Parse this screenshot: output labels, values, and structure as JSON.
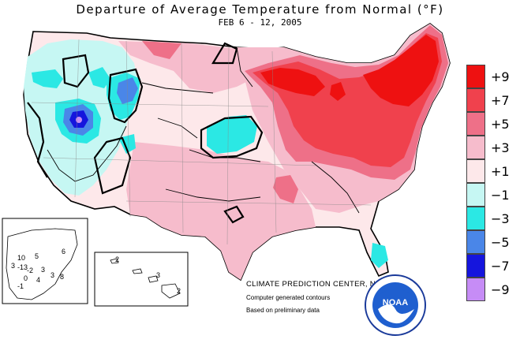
{
  "title": "Departure of Average Temperature from Normal (°F)",
  "subtitle": "FEB 6 - 12, 2005",
  "legend": [
    {
      "label": "+9",
      "color": "#ee1111"
    },
    {
      "label": "+7",
      "color": "#f0414d"
    },
    {
      "label": "+5",
      "color": "#ee7088"
    },
    {
      "label": "+3",
      "color": "#f6bccc"
    },
    {
      "label": "+1",
      "color": "#fde8ea"
    },
    {
      "label": "−1",
      "color": "#c6f7f3"
    },
    {
      "label": "−3",
      "color": "#2be8e4"
    },
    {
      "label": "−5",
      "color": "#4a86e8"
    },
    {
      "label": "−7",
      "color": "#1515dd"
    },
    {
      "label": "−9",
      "color": "#c68cf6"
    }
  ],
  "credits": {
    "line1": "CLIMATE PREDICTION CENTER, NOAA",
    "line2": "Computer generated contours",
    "line3": "Based on preliminary data"
  },
  "logo": {
    "text": "NOAA",
    "icon": "noaa-logo-icon"
  },
  "alaska_labels": [
    "10",
    "5",
    "6",
    "3",
    "-13",
    "-2",
    "3",
    "3",
    "0",
    "4",
    "8",
    "-1"
  ],
  "hawaii_labels": [
    "2",
    "3",
    "2"
  ]
}
